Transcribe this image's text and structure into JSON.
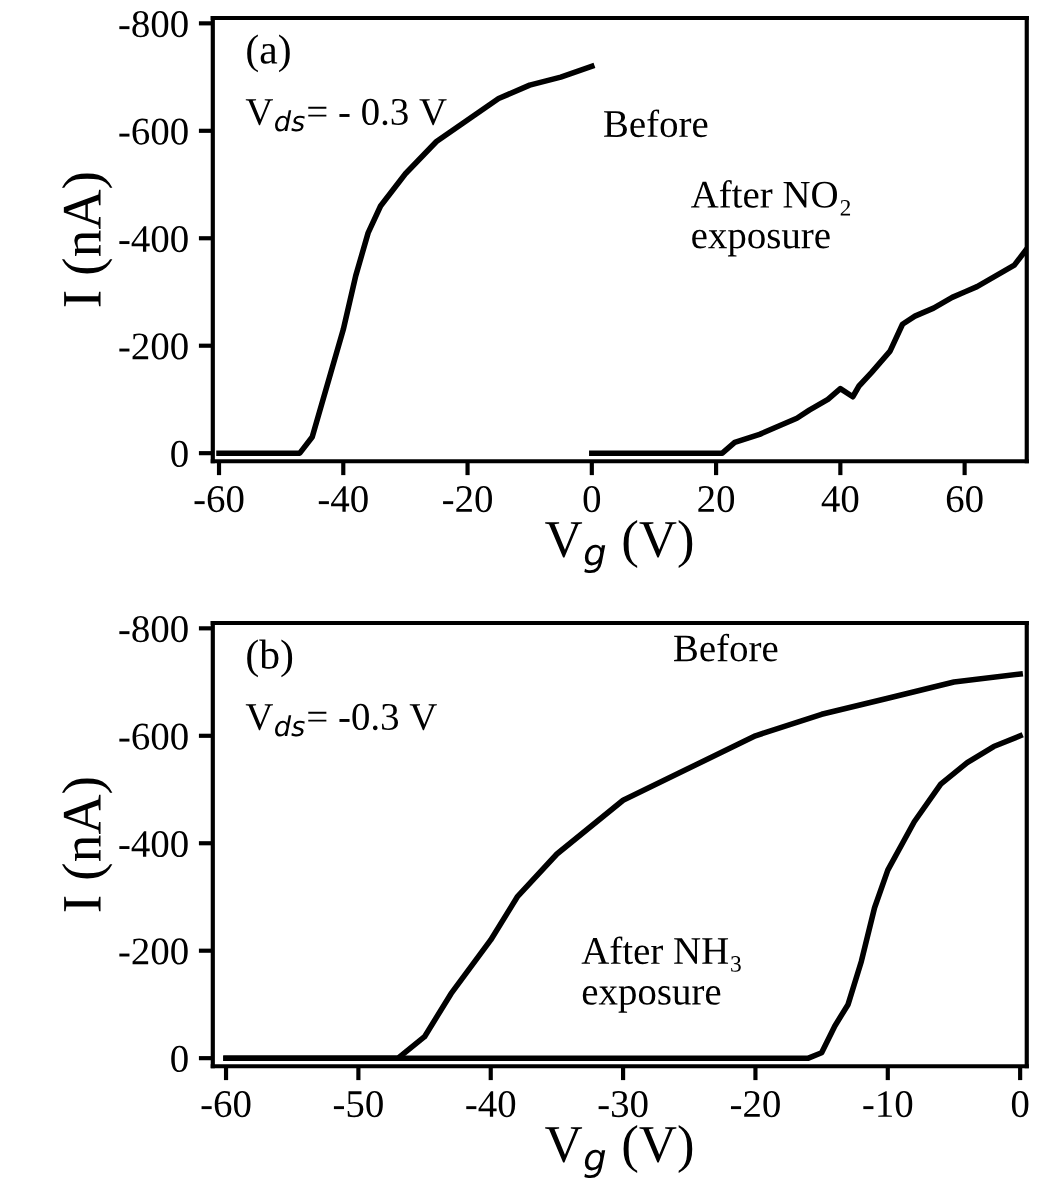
{
  "chart_data": [
    {
      "type": "line",
      "xlabel": "V$_{g}$ (V)",
      "ylabel": "I (nA)",
      "xlim": [
        -61,
        70
      ],
      "ylim": [
        15,
        -810
      ],
      "xticks": [
        -60,
        -40,
        -20,
        0,
        20,
        40,
        60
      ],
      "yticks": [
        -800,
        -600,
        -400,
        -200,
        0
      ],
      "grid": false,
      "legend": false,
      "annotations": [
        "(a)",
        "V$_{ds}$= - 0.3 V"
      ],
      "series": [
        {
          "name": "Before",
          "color": "#000000",
          "x": [
            -60,
            -47,
            -45,
            -42,
            -40,
            -38,
            -36,
            -34,
            -30,
            -25,
            -20,
            -15,
            -10,
            -5,
            0
          ],
          "values": [
            0,
            0,
            -30,
            -150,
            -230,
            -330,
            -410,
            -460,
            -520,
            -580,
            -620,
            -660,
            -685,
            -700,
            -720
          ]
        },
        {
          "name": "After NO₂\nexposure",
          "color": "#000000",
          "x": [
            0,
            21,
            23,
            27,
            30,
            33,
            35,
            38,
            40,
            42,
            43,
            45,
            48,
            50,
            52,
            55,
            58,
            60,
            62,
            65,
            68,
            70
          ],
          "values": [
            0,
            0,
            -20,
            -35,
            -50,
            -65,
            -80,
            -100,
            -120,
            -105,
            -125,
            -150,
            -190,
            -240,
            -255,
            -270,
            -290,
            -300,
            -310,
            -330,
            -350,
            -380
          ]
        }
      ]
    },
    {
      "type": "line",
      "xlabel": "V$_{g}$ (V)",
      "ylabel": "I (nA)",
      "xlim": [
        -61,
        0.5
      ],
      "ylim": [
        15,
        -810
      ],
      "xticks": [
        -60,
        -50,
        -40,
        -30,
        -20,
        -10,
        0
      ],
      "yticks": [
        -800,
        -600,
        -400,
        -200,
        0
      ],
      "grid": false,
      "legend": false,
      "annotations": [
        "(b)",
        "V$_{ds}$= -0.3 V"
      ],
      "series": [
        {
          "name": "Before",
          "color": "#000000",
          "x": [
            -60,
            -47,
            -45,
            -43,
            -40,
            -38,
            -35,
            -32,
            -30,
            -25,
            -20,
            -15,
            -10,
            -5,
            0
          ],
          "values": [
            0,
            0,
            -40,
            -120,
            -220,
            -300,
            -380,
            -440,
            -480,
            -540,
            -600,
            -640,
            -670,
            -700,
            -715
          ]
        },
        {
          "name": "After NH₃\nexposure",
          "color": "#000000",
          "x": [
            -60,
            -16,
            -15,
            -14,
            -13,
            -12,
            -11,
            -10,
            -8,
            -6,
            -4,
            -2,
            0
          ],
          "values": [
            0,
            0,
            -10,
            -60,
            -100,
            -180,
            -280,
            -350,
            -440,
            -510,
            -550,
            -580,
            -600
          ]
        }
      ]
    }
  ]
}
